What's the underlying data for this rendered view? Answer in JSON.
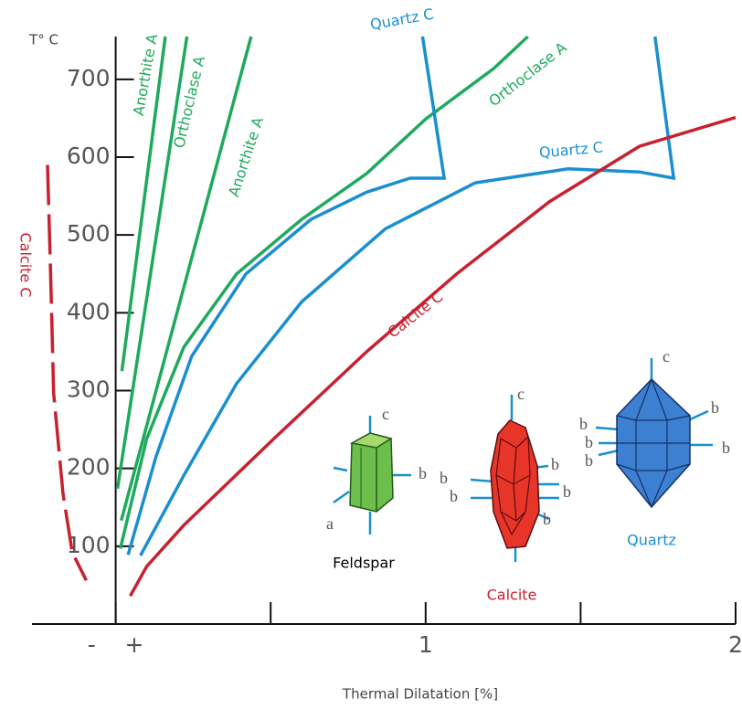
{
  "chart_data": {
    "type": "line",
    "y_label": "T° C",
    "x_label": "Thermal Dilatation [%]",
    "xlim": [
      -0.27,
      2
    ],
    "ylim": [
      0,
      755
    ],
    "xticks": [
      {
        "value": 0,
        "label": "-    +"
      },
      1,
      2
    ],
    "minor_xticks": [
      0.5,
      1.5
    ],
    "yticks": [
      100,
      200,
      300,
      400,
      500,
      600,
      700
    ],
    "series": [
      {
        "name": "Anorthite A",
        "color": "#1eaa5c",
        "x": [
          0.02,
          0.16
        ],
        "values": [
          325,
          755
        ]
      },
      {
        "name": "Orthoclase A",
        "color": "#1eaa5c",
        "x": [
          0.006,
          0.23
        ],
        "values": [
          174,
          755
        ]
      },
      {
        "name": "Anorthite A",
        "color": "#1eaa5c",
        "x": [
          0.018,
          0.437
        ],
        "values": [
          133,
          755
        ]
      },
      {
        "name": "Orthoclase A",
        "color": "#1eaa5c",
        "x": [
          0.015,
          0.1,
          0.22,
          0.39,
          0.6,
          0.81,
          1.0,
          1.22,
          1.33
        ],
        "values": [
          97,
          238,
          356,
          450,
          520,
          579,
          649,
          714,
          755
        ]
      },
      {
        "name": "Quartz C",
        "color": "#1a8fd0",
        "x": [
          0.04,
          0.13,
          0.245,
          0.42,
          0.63,
          0.81,
          0.95,
          1.06,
          0.99
        ],
        "values": [
          89,
          215,
          344,
          450,
          520,
          555,
          573,
          573,
          755
        ]
      },
      {
        "name": "Quartz C",
        "color": "#1a8fd0",
        "x": [
          0.08,
          0.22,
          0.39,
          0.6,
          0.87,
          1.16,
          1.46,
          1.69,
          1.8,
          1.74
        ],
        "values": [
          88,
          191,
          309,
          414,
          508,
          567,
          585,
          581,
          573,
          755
        ]
      },
      {
        "name": "Calcite C",
        "color": "#c8202f",
        "x": [
          0.047,
          0.1,
          0.22,
          0.51,
          0.81,
          1.1,
          1.4,
          1.69,
          2.0
        ],
        "values": [
          36,
          74,
          127,
          238,
          350,
          450,
          543,
          614,
          651
        ]
      },
      {
        "name": "Calcite C",
        "color": "#c8202f",
        "dashed": true,
        "x": [
          -0.22,
          -0.21,
          -0.2,
          -0.17,
          -0.14,
          -0.095
        ],
        "values": [
          590,
          450,
          297,
          168,
          92,
          56
        ]
      }
    ],
    "crystals": [
      {
        "name": "Feldspar",
        "color": "#1eaa5c",
        "axis_labels": [
          "c",
          "b",
          "a"
        ]
      },
      {
        "name": "Calcite",
        "color": "#c8202f",
        "axis_labels": [
          "c",
          "b",
          "b",
          "b",
          "b",
          "b"
        ]
      },
      {
        "name": "Quartz",
        "color": "#1a8fd0",
        "axis_labels": [
          "c",
          "b",
          "b",
          "b",
          "b",
          "b"
        ]
      }
    ]
  }
}
